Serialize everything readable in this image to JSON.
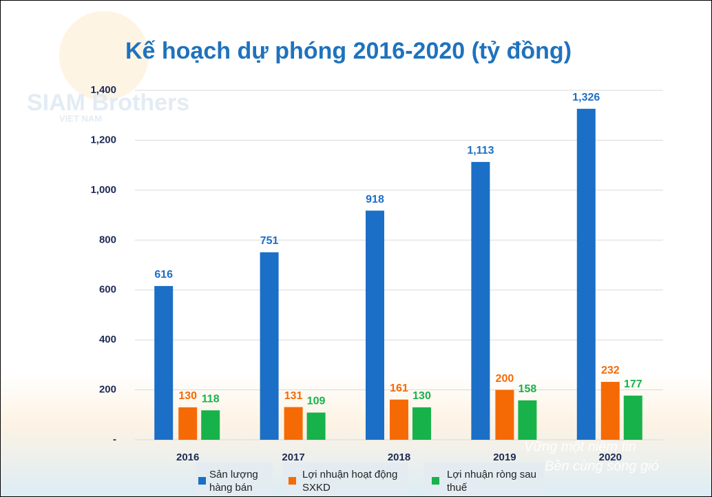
{
  "watermark": "SIAM Brothers",
  "watermark_sub": "VIET NAM",
  "slogan": [
    "Vững một niềm tin",
    "Bền cùng sóng gió"
  ],
  "chart_data": {
    "type": "bar",
    "title": "Kế hoạch dự phóng 2016-2020 (tỷ đồng)",
    "categories": [
      "2016",
      "2017",
      "2018",
      "2019",
      "2020"
    ],
    "series": [
      {
        "name": "Sản lượng hàng bán",
        "color": "#1b6fc6",
        "values": [
          616,
          751,
          918,
          1113,
          1326
        ],
        "value_labels": [
          "616",
          "751",
          "918",
          "1,113",
          "1,326"
        ]
      },
      {
        "name": "Lợi nhuận hoạt động SXKD",
        "color": "#f66a05",
        "values": [
          130,
          131,
          161,
          200,
          232
        ]
      },
      {
        "name": "Lợi nhuận ròng sau thuế",
        "color": "#18b24b",
        "values": [
          118,
          109,
          130,
          158,
          177
        ]
      }
    ],
    "ylim": [
      0,
      1400
    ],
    "yticks": [
      {
        "value": 0,
        "label": "-"
      },
      200,
      400,
      600,
      800,
      {
        "value": 1000,
        "label": "1,000"
      },
      {
        "value": 1200,
        "label": "1,200"
      },
      {
        "value": 1400,
        "label": "1,400"
      }
    ],
    "grid": true,
    "legend": "bottom"
  }
}
